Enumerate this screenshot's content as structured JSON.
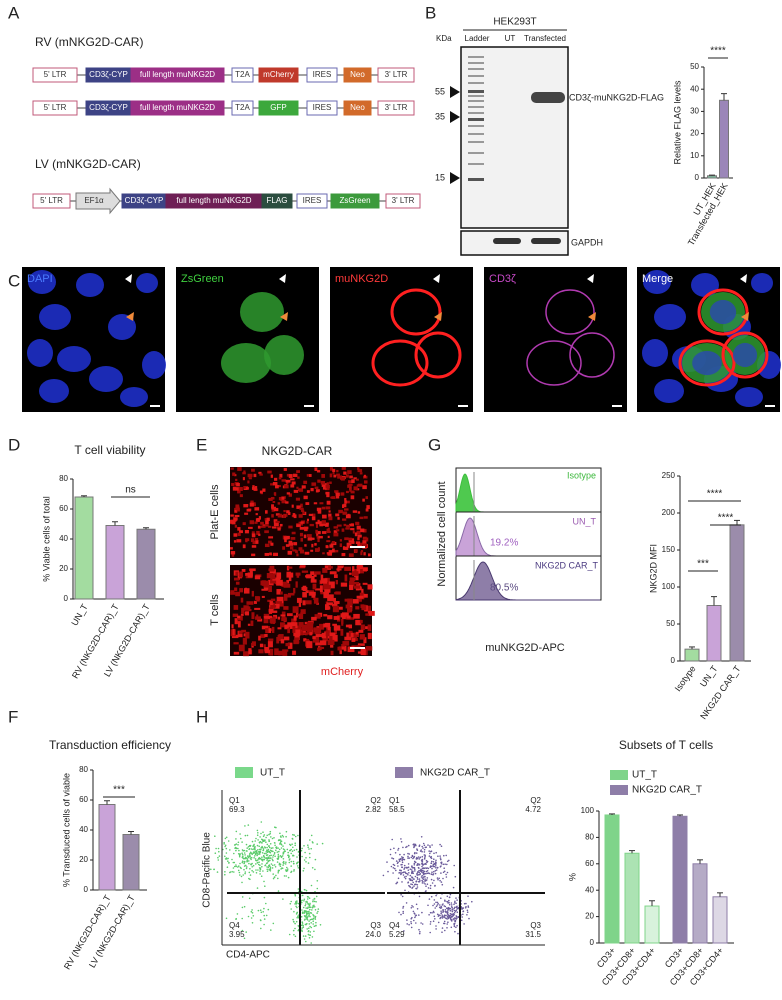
{
  "panel_letters": [
    "A",
    "B",
    "C",
    "D",
    "E",
    "F",
    "G",
    "H"
  ],
  "constructs": {
    "rv_title": "RV (mNKG2D-CAR)",
    "rv_mcherry": [
      "5' LTR",
      "CD3ζ-CYP",
      "full length muNKG2D",
      "T2A",
      "mCherry",
      "IRES",
      "Neo",
      "3' LTR"
    ],
    "rv_gfp": [
      "5' LTR",
      "CD3ζ-CYP",
      "full length muNKG2D",
      "T2A",
      "GFP",
      "IRES",
      "Neo",
      "3' LTR"
    ],
    "lv_title": "LV (mNKG2D-CAR)",
    "lv": [
      "5' LTR",
      "EF1α",
      "CD3ζ-CYP",
      "full length muNKG2D",
      "FLAG",
      "IRES",
      "ZsGreen",
      "3' LTR"
    ]
  },
  "western_blot": {
    "cell_line": "HEK293T",
    "unit": "KDa",
    "lanes": [
      "Ladder",
      "UT",
      "Transfected"
    ],
    "markers": [
      "55",
      "35",
      "15"
    ],
    "band_label": "CD3ζ-muNKG2D-FLAG",
    "loading_label": "GAPDH"
  },
  "microscopy": {
    "channels": [
      "DAPI",
      "ZsGreen",
      "muNKG2D",
      "CD3ζ",
      "Merge"
    ]
  },
  "plat_e": {
    "title": "NKG2D-CAR",
    "rows": [
      "Plat-E cells",
      "T cells"
    ],
    "channel": "mCherry"
  },
  "histogram": {
    "y_label": "Normalized cell count",
    "x_label": "muNKG2D-APC",
    "tracks": [
      {
        "name": "Isotype"
      },
      {
        "name": "UN_T",
        "percent": "19.2%"
      },
      {
        "name": "NKG2D CAR_T",
        "percent": "80.5%"
      }
    ]
  },
  "flow": {
    "y_label": "CD8-Pacific Blue",
    "x_label": "CD4-APC",
    "samples": [
      {
        "name": "UT_T",
        "quadrants": [
          {
            "label": "Q1",
            "value": "69.3"
          },
          {
            "label": "Q2",
            "value": "2.82"
          },
          {
            "label": "Q3",
            "value": "24.0"
          },
          {
            "label": "Q4",
            "value": "3.95"
          }
        ]
      },
      {
        "name": "NKG2D CAR_T",
        "quadrants": [
          {
            "label": "Q1",
            "value": "58.5"
          },
          {
            "label": "Q2",
            "value": "4.72"
          },
          {
            "label": "Q3",
            "value": "31.5"
          },
          {
            "label": "Q4",
            "value": "5.29"
          }
        ]
      }
    ]
  },
  "chart_data": [
    {
      "type": "bar",
      "y_label": "Relative FLAG levels",
      "categories": [
        "UT_HEK",
        "Transfected_HEK"
      ],
      "values": [
        1,
        35
      ],
      "errors": [
        0.3,
        3
      ],
      "colors": [
        "#7fc0a0",
        "#9b86b8"
      ],
      "ylim": [
        0,
        50
      ],
      "yticks": [
        0,
        10,
        20,
        30,
        40,
        50
      ],
      "annotations": [
        "****"
      ]
    },
    {
      "type": "bar",
      "title": "T cell viability",
      "y_label": "% Viable cells of total",
      "categories": [
        "UN_T",
        "RV (NKG2D-CAR)_T",
        "LV (NKG2D-CAR)_T"
      ],
      "values": [
        68,
        49,
        46.5
      ],
      "errors": [
        0.8,
        2.5,
        1
      ],
      "colors": [
        "#a3dca0",
        "#c9a3d8",
        "#9b8cab"
      ],
      "ylim": [
        0,
        80
      ],
      "yticks": [
        0,
        20,
        40,
        60,
        80
      ],
      "annotations": [
        "ns"
      ]
    },
    {
      "type": "bar",
      "y_label": "NKG2D MFI",
      "categories": [
        "Isotype",
        "UN_T",
        "NKG2D CAR_T"
      ],
      "values": [
        16,
        75,
        184
      ],
      "errors": [
        3,
        12,
        6
      ],
      "colors": [
        "#a3dca0",
        "#c9a3d8",
        "#9b8cab"
      ],
      "ylim": [
        0,
        250
      ],
      "yticks": [
        0,
        50,
        100,
        150,
        200,
        250
      ],
      "annotations": [
        "***",
        "****",
        "****"
      ]
    },
    {
      "type": "bar",
      "title": "Transduction efficiency",
      "y_label": "% Transduced cells of viable",
      "categories": [
        "RV (NKG2D-CAR)_T",
        "LV (NKG2D-CAR)_T"
      ],
      "values": [
        57,
        37
      ],
      "errors": [
        2.5,
        2
      ],
      "colors": [
        "#c9a3d8",
        "#9b8cab"
      ],
      "ylim": [
        0,
        80
      ],
      "yticks": [
        0,
        20,
        40,
        60,
        80
      ],
      "annotations": [
        "***"
      ]
    },
    {
      "type": "grouped_bar",
      "title": "Subsets of T cells",
      "y_label": "%",
      "categories": [
        "CD3+",
        "CD3+CD8+",
        "CD3+CD4+"
      ],
      "series": [
        {
          "name": "UT_T",
          "color": "#7fd48a",
          "values": [
            97,
            68,
            28
          ],
          "errors": [
            0.8,
            2,
            4
          ]
        },
        {
          "name": "NKG2D CAR_T",
          "color": "#8e7ea8",
          "values": [
            96,
            60,
            35
          ],
          "errors": [
            1,
            3,
            3
          ]
        }
      ],
      "ylim": [
        0,
        100
      ],
      "yticks": [
        0,
        20,
        40,
        60,
        80,
        100
      ]
    }
  ]
}
